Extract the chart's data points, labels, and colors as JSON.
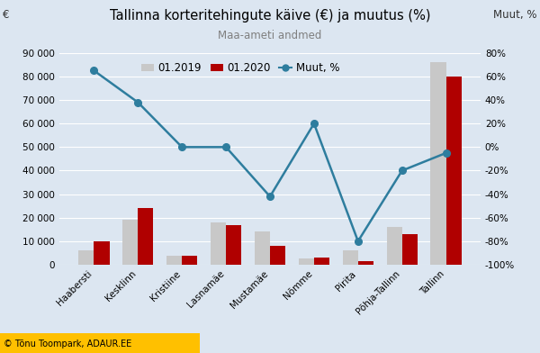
{
  "title": "Tallinna korteritehingute käive (€) ja muutus (%)",
  "subtitle": "Maa-ameti andmed",
  "label_left": "€",
  "label_right": "Muut, %",
  "categories": [
    "Haabersti",
    "Kesklinn",
    "Kristiine",
    "Lasnamäe",
    "Mustamäe",
    "Nõmme",
    "Pirita",
    "Põhja-Tallinn",
    "Tallinn"
  ],
  "values_2019": [
    6000,
    19000,
    4000,
    18000,
    14000,
    2500,
    6000,
    16000,
    86000
  ],
  "values_2020": [
    10000,
    24000,
    4000,
    17000,
    8000,
    3000,
    1500,
    13000,
    80000
  ],
  "muut_pct": [
    65,
    38,
    0,
    0,
    -42,
    20,
    -80,
    -20,
    -5
  ],
  "bar_color_2019": "#c8c8c8",
  "bar_color_2020": "#b00000",
  "line_color": "#2e7d9e",
  "legend_labels": [
    "01.2019",
    "01.2020",
    "Muut, %"
  ],
  "ylim_left": [
    0,
    90000
  ],
  "ylim_right": [
    -100,
    80
  ],
  "yticks_left": [
    0,
    10000,
    20000,
    30000,
    40000,
    50000,
    60000,
    70000,
    80000,
    90000
  ],
  "ytick_labels_left": [
    "0",
    "10 000",
    "20 000",
    "30 000",
    "40 000",
    "50 000",
    "60 000",
    "70 000",
    "80 000",
    "90 000"
  ],
  "yticks_right": [
    -100,
    -80,
    -60,
    -40,
    -20,
    0,
    20,
    40,
    60,
    80
  ],
  "ytick_labels_right": [
    "-100%",
    "-80%",
    "-60%",
    "-40%",
    "-20%",
    "0%",
    "20%",
    "40%",
    "60%",
    "80%"
  ],
  "background_color": "#dce6f1",
  "plot_bg_color": "#dce6f1",
  "grid_color": "#ffffff",
  "title_color": "#000000",
  "subtitle_color": "#7f7f7f",
  "footer_text": "© Tõnu Toompark, ADAUR.EE",
  "footer_bg": "#ffc000"
}
